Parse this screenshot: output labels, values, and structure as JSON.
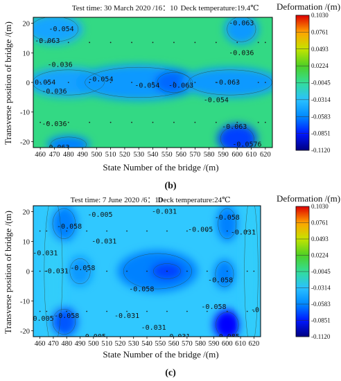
{
  "chart_data": [
    {
      "type": "heatmap",
      "panel_label": "(b)",
      "header_left": "Test time: 30 March 2020 /16：10",
      "header_right": "Deck temperature:19.4℃",
      "xlabel": "State Number of the bridge /(m)",
      "ylabel": "Transverse position of bridge  /(m)",
      "xlim": [
        455,
        625
      ],
      "ylim": [
        -22,
        22
      ],
      "x_ticks": [
        460,
        470,
        480,
        490,
        500,
        510,
        520,
        530,
        540,
        550,
        560,
        570,
        580,
        590,
        600,
        610,
        620
      ],
      "y_ticks": [
        20,
        10,
        0,
        -10,
        -20
      ],
      "colorbar_title": "Deformation /(m)",
      "colorbar_ticks": [
        "0.1030",
        "0.0761",
        "0.0493",
        "0.0224",
        "-0.0045",
        "-0.0314",
        "-0.0583",
        "-0.0851",
        "-0.1120"
      ],
      "colorbar_range": [
        -0.112,
        0.103
      ],
      "background_value": 0.0,
      "blobs": [
        {
          "x": 480,
          "y": 0,
          "value": -0.046,
          "rx": 30,
          "ry": 5
        },
        {
          "x": 530,
          "y": 0,
          "value": -0.05,
          "rx": 45,
          "ry": 6
        },
        {
          "x": 555,
          "y": 0,
          "value": -0.066,
          "rx": 14,
          "ry": 4
        },
        {
          "x": 595,
          "y": 0,
          "value": -0.05,
          "rx": 35,
          "ry": 5
        },
        {
          "x": 470,
          "y": 18,
          "value": -0.045,
          "rx": 20,
          "ry": 5
        },
        {
          "x": 480,
          "y": -21,
          "value": -0.06,
          "rx": 15,
          "ry": 3
        },
        {
          "x": 600,
          "y": -19,
          "value": -0.075,
          "rx": 14,
          "ry": 5
        },
        {
          "x": 603,
          "y": 18,
          "value": -0.05,
          "rx": 12,
          "ry": 5
        }
      ],
      "contour_labels": [
        {
          "x": 475,
          "y": 18,
          "text": "-0.054"
        },
        {
          "x": 603,
          "y": 20,
          "text": "-0.063"
        },
        {
          "x": 465,
          "y": 14,
          "text": "-0.063"
        },
        {
          "x": 603,
          "y": 10,
          "text": "-0.036"
        },
        {
          "x": 474,
          "y": 6,
          "text": "-0.036"
        },
        {
          "x": 462,
          "y": 0,
          "text": "-0.054"
        },
        {
          "x": 503,
          "y": 1,
          "text": "-0.054"
        },
        {
          "x": 536,
          "y": -1,
          "text": "-0.054"
        },
        {
          "x": 560,
          "y": -1,
          "text": "-0.063"
        },
        {
          "x": 593,
          "y": 0,
          "text": "-0.063"
        },
        {
          "x": 470,
          "y": -3,
          "text": "-0.036"
        },
        {
          "x": 585,
          "y": -6,
          "text": "-0.054"
        },
        {
          "x": 470,
          "y": -14,
          "text": "-0.036"
        },
        {
          "x": 598,
          "y": -15,
          "text": "-0.063"
        },
        {
          "x": 472,
          "y": -22,
          "text": "-0.063"
        },
        {
          "x": 607,
          "y": -21,
          "text": "-0.0576"
        }
      ],
      "measurement_points": {
        "x": [
          460,
          465,
          480,
          495,
          510,
          525,
          540,
          555,
          570,
          585,
          600,
          615,
          620
        ],
        "y": [
          13.5,
          0,
          -13.5
        ]
      }
    },
    {
      "type": "heatmap",
      "panel_label": "(c)",
      "header_left": "Test time: 7 June 2020 /6：10",
      "header_right": "Deck temperature:24℃",
      "xlabel": "State Number of the bridge /(m)",
      "ylabel": "Transverse position of bridge  /(m)",
      "xlim": [
        455,
        625
      ],
      "ylim": [
        -22,
        22
      ],
      "x_ticks": [
        460,
        470,
        480,
        490,
        500,
        510,
        520,
        530,
        540,
        550,
        560,
        570,
        580,
        590,
        600,
        610,
        620
      ],
      "y_ticks": [
        20,
        10,
        0,
        -10,
        -20
      ],
      "colorbar_title": "Deformation /(m)",
      "colorbar_ticks": [
        "0.1030",
        "0.0761",
        "0.0493",
        "0.0224",
        "-0.0045",
        "-0.0314",
        "-0.0583",
        "-0.0851",
        "-0.1120"
      ],
      "colorbar_range": [
        -0.112,
        0.103
      ],
      "background_value": -0.028,
      "blobs": [
        {
          "x": 470,
          "y": 0,
          "value": -0.025,
          "rx": 8,
          "ry": 30
        },
        {
          "x": 618,
          "y": 0,
          "value": -0.025,
          "rx": 6,
          "ry": 30
        },
        {
          "x": 548,
          "y": 0,
          "value": -0.06,
          "rx": 30,
          "ry": 7
        },
        {
          "x": 555,
          "y": 0,
          "value": -0.075,
          "rx": 12,
          "ry": 3
        },
        {
          "x": 478,
          "y": 16,
          "value": -0.06,
          "rx": 10,
          "ry": 6
        },
        {
          "x": 478,
          "y": -17,
          "value": -0.07,
          "rx": 10,
          "ry": 5
        },
        {
          "x": 600,
          "y": -18,
          "value": -0.09,
          "rx": 10,
          "ry": 5
        },
        {
          "x": 600,
          "y": 16,
          "value": -0.06,
          "rx": 8,
          "ry": 6
        },
        {
          "x": 598,
          "y": -1,
          "value": -0.06,
          "rx": 8,
          "ry": 5
        },
        {
          "x": 490,
          "y": 0,
          "value": -0.05,
          "rx": 9,
          "ry": 5
        }
      ],
      "contour_labels": [
        {
          "x": 505,
          "y": 19,
          "text": "-0.005"
        },
        {
          "x": 553,
          "y": 20,
          "text": "-0.031"
        },
        {
          "x": 600,
          "y": 18,
          "text": "-0.058"
        },
        {
          "x": 482,
          "y": 15,
          "text": "-0.058"
        },
        {
          "x": 580,
          "y": 14,
          "text": "-0.005"
        },
        {
          "x": 612,
          "y": 13,
          "text": "-0.031"
        },
        {
          "x": 508,
          "y": 10,
          "text": "-0.031"
        },
        {
          "x": 464,
          "y": 6,
          "text": "-0.031"
        },
        {
          "x": 472,
          "y": 0,
          "text": "-0.031"
        },
        {
          "x": 492,
          "y": 1,
          "text": "-0.058"
        },
        {
          "x": 536,
          "y": -6,
          "text": "-0.058"
        },
        {
          "x": 595,
          "y": -3,
          "text": "-0.058"
        },
        {
          "x": 590,
          "y": -12,
          "text": "-0.058"
        },
        {
          "x": 624,
          "y": -13,
          "text": "-0.0"
        },
        {
          "x": 461,
          "y": -16,
          "text": "-0.005"
        },
        {
          "x": 480,
          "y": -15,
          "text": "-0.058"
        },
        {
          "x": 525,
          "y": -15,
          "text": "-0.031"
        },
        {
          "x": 545,
          "y": -19,
          "text": "-0.031"
        },
        {
          "x": 500,
          "y": -22,
          "text": "-0.005"
        },
        {
          "x": 563,
          "y": -22,
          "text": "-0.031"
        },
        {
          "x": 600,
          "y": -22,
          "text": "-0.085"
        }
      ],
      "measurement_points": {
        "x": [
          460,
          465,
          480,
          495,
          510,
          525,
          540,
          555,
          570,
          585,
          600,
          615,
          620
        ],
        "y": [
          13.5,
          0,
          -13.5
        ]
      }
    }
  ]
}
